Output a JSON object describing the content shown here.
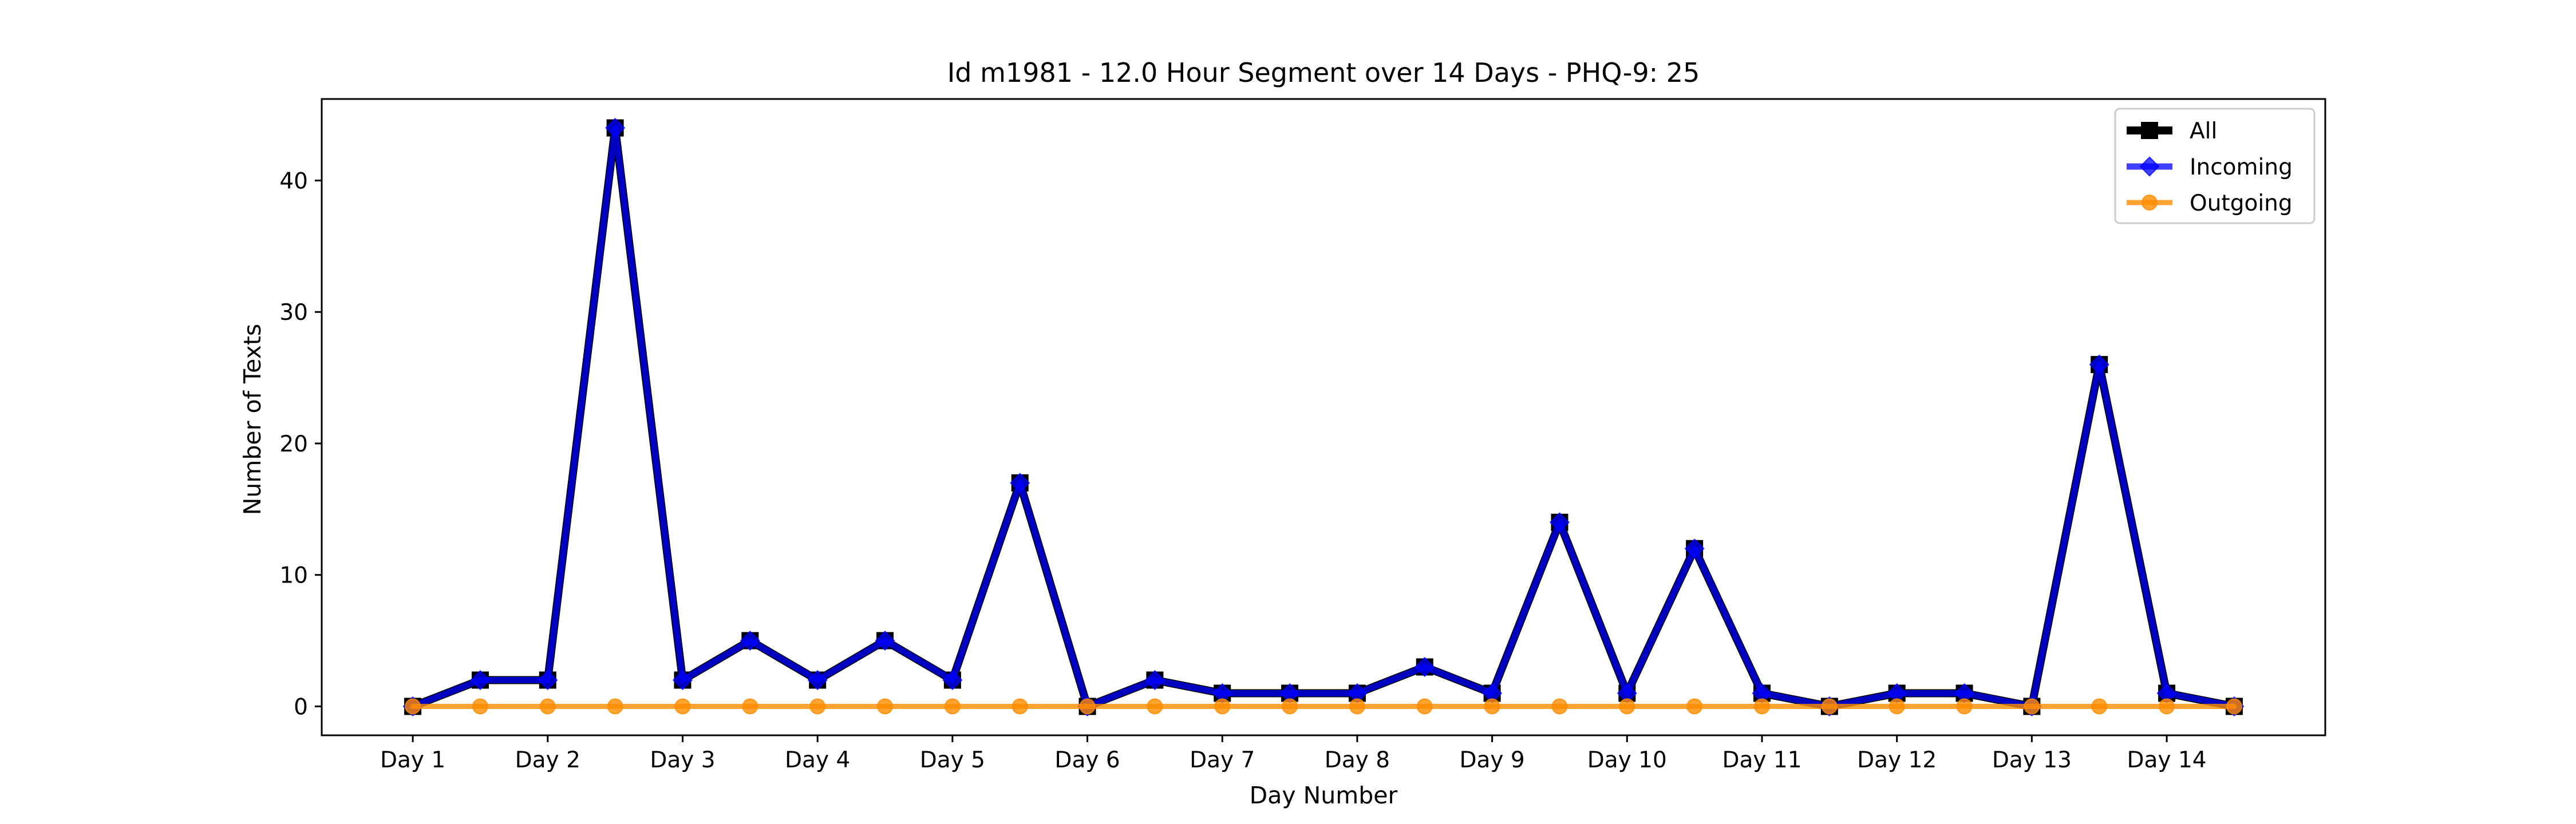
{
  "chart_data": {
    "type": "line",
    "title": "Id m1981 - 12.0 Hour Segment over 14 Days - PHQ-9: 25",
    "xlabel": "Day Number",
    "ylabel": "Number of Texts",
    "x_tick_labels": [
      "Day 1",
      "Day 2",
      "Day 3",
      "Day 4",
      "Day 5",
      "Day 6",
      "Day 7",
      "Day 8",
      "Day 9",
      "Day 10",
      "Day 11",
      "Day 12",
      "Day 13",
      "Day 14"
    ],
    "y_ticks": [
      0,
      10,
      20,
      30,
      40
    ],
    "ylim": [
      -2.2,
      46.2
    ],
    "x": [
      1,
      1.5,
      2,
      2.5,
      3,
      3.5,
      4,
      4.5,
      5,
      5.5,
      6,
      6.5,
      7,
      7.5,
      8,
      8.5,
      9,
      9.5,
      10,
      10.5,
      11,
      11.5,
      12,
      12.5,
      13,
      13.5,
      14,
      14.5
    ],
    "xlim": [
      0.325,
      15.175
    ],
    "grid": false,
    "legend_position": "top-right",
    "series": [
      {
        "name": "All",
        "color": "#000000",
        "marker": "square",
        "values": [
          0,
          2,
          2,
          44,
          2,
          5,
          2,
          5,
          2,
          17,
          0,
          2,
          1,
          1,
          1,
          3,
          1,
          14,
          1,
          12,
          1,
          0,
          1,
          1,
          0,
          26,
          1,
          0
        ]
      },
      {
        "name": "Incoming",
        "color": "#0000ff",
        "marker": "diamond",
        "values": [
          0,
          2,
          2,
          44,
          2,
          5,
          2,
          5,
          2,
          17,
          0,
          2,
          1,
          1,
          1,
          3,
          1,
          14,
          1,
          12,
          1,
          0,
          1,
          1,
          0,
          26,
          1,
          0
        ]
      },
      {
        "name": "Outgoing",
        "color": "#ff8c00",
        "marker": "circle",
        "values": [
          0,
          0,
          0,
          0,
          0,
          0,
          0,
          0,
          0,
          0,
          0,
          0,
          0,
          0,
          0,
          0,
          0,
          0,
          0,
          0,
          0,
          0,
          0,
          0,
          0,
          0,
          0,
          0
        ]
      }
    ]
  }
}
